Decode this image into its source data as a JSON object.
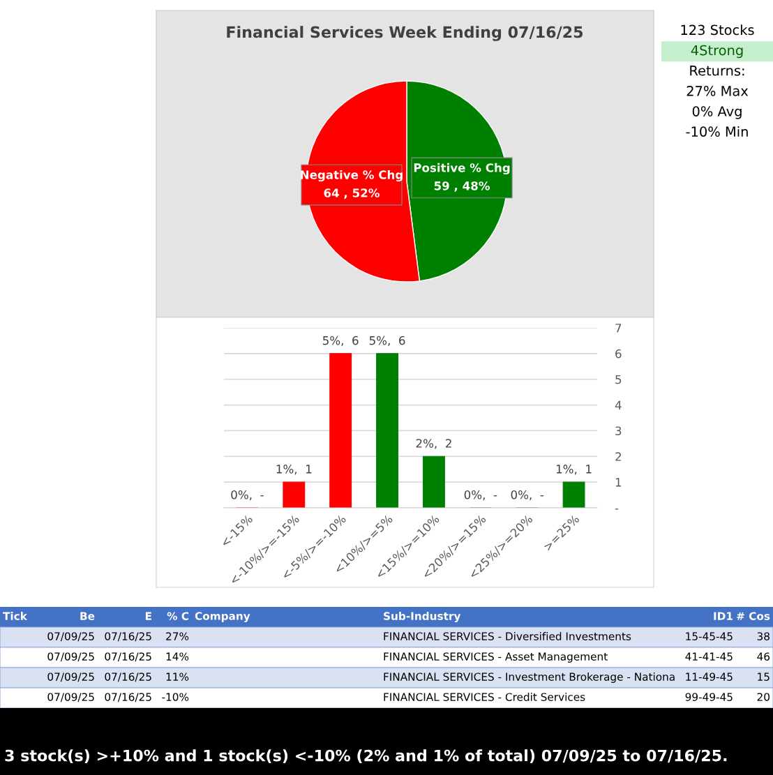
{
  "chart_data": [
    {
      "type": "pie",
      "title": "Financial Services Week Ending 07/16/25",
      "categories": [
        "Positive % Chg",
        "Negative % Chg"
      ],
      "values": [
        59,
        64
      ],
      "colors": [
        "#008000",
        "#ff0000"
      ],
      "value_labels": [
        "59 , 48%",
        "64 , 52%"
      ],
      "legend": false
    },
    {
      "type": "bar",
      "categories": [
        "<-15%",
        "<-10%/>=-15%",
        "<-5%/>=-10%",
        "<10%/>=5%",
        "<15%/>=10%",
        "<20%/>=15%",
        "<25%/>=20%",
        ">=25%"
      ],
      "values": [
        0,
        1,
        6,
        6,
        2,
        0,
        0,
        1
      ],
      "colors": [
        "#ff0000",
        "#ff0000",
        "#ff0000",
        "#008000",
        "#008000",
        "#008000",
        "#008000",
        "#008000"
      ],
      "value_labels": [
        "0%,  -",
        "1%,  1",
        "5%,  6",
        "5%,  6",
        "2%,  2",
        "0%,  -",
        "0%,  -",
        "1%,  1"
      ],
      "ylim": [
        0,
        7
      ],
      "yticks": [
        {
          "value": 0,
          "label": "-"
        },
        1,
        2,
        3,
        4,
        5,
        6,
        7
      ],
      "grid": "y",
      "legend": false
    },
    {
      "type": "other",
      "annotations": [
        "123 Stocks",
        "4Strong",
        "Returns:",
        "27% Max",
        "0% Avg",
        "-10% Min"
      ]
    },
    {
      "type": "other",
      "categories": [
        "Tick",
        "Be",
        "E",
        "% C",
        "Company",
        "Sub-Industry",
        "ID1",
        "# Cos"
      ],
      "cell_labels": [
        [
          null,
          "07/09/25",
          "07/16/25",
          "27%",
          null,
          "FINANCIAL SERVICES - Diversified Investments",
          "15-45-45",
          "38"
        ],
        [
          null,
          "07/09/25",
          "07/16/25",
          "14%",
          null,
          "FINANCIAL SERVICES - Asset Management",
          "41-41-45",
          "46"
        ],
        [
          null,
          "07/09/25",
          "07/16/25",
          "11%",
          null,
          "FINANCIAL SERVICES - Investment Brokerage - Nationa",
          "11-49-45",
          "15"
        ],
        [
          null,
          "07/09/25",
          "07/16/25",
          "-10%",
          null,
          "FINANCIAL SERVICES - Credit Services",
          "99-49-45",
          "20"
        ]
      ],
      "annotations": [
        "3 stock(s) >+10% and 1 stock(s) <-10% (2% and 1% of total) 07/09/25 to 07/16/25."
      ]
    }
  ]
}
